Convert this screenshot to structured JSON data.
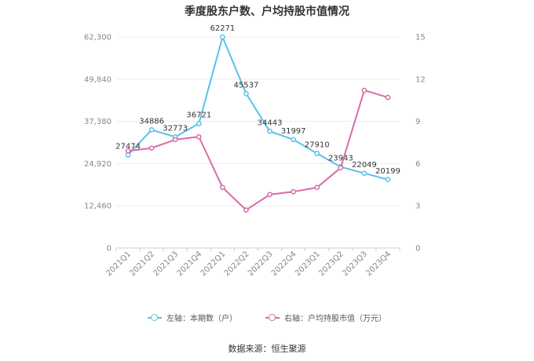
{
  "chart_data": {
    "type": "line",
    "title": "季度股东户数、户均持股市值情况",
    "categories": [
      "2021Q1",
      "2021Q2",
      "2021Q3",
      "2021Q4",
      "2022Q1",
      "2022Q2",
      "2022Q3",
      "2022Q4",
      "2023Q1",
      "2023Q2",
      "2023Q3",
      "2023Q4"
    ],
    "left_axis": {
      "ylim": [
        0,
        62300
      ],
      "ticks": [
        "0",
        "12,460",
        "24,920",
        "37,380",
        "49,840",
        "62,300"
      ]
    },
    "right_axis": {
      "ylim": [
        0,
        15
      ],
      "ticks": [
        "0",
        "3",
        "6",
        "9",
        "12",
        "15"
      ]
    },
    "series": [
      {
        "name": "左轴：本期数（户）",
        "axis": "left",
        "color": "#5bc0eb",
        "values": [
          27474,
          34886,
          32773,
          36721,
          62271,
          45537,
          34443,
          31997,
          27910,
          23943,
          22049,
          20199
        ],
        "labels": [
          "27474",
          "34886",
          "32773",
          "36721",
          "62271",
          "45537",
          "34443",
          "31997",
          "27910",
          "23943",
          "22049",
          "20199"
        ]
      },
      {
        "name": "右轴：户均持股市值（万元）",
        "axis": "right",
        "color": "#d96ba8",
        "values": [
          6.9,
          7.1,
          7.7,
          7.9,
          4.3,
          2.7,
          3.8,
          4.0,
          4.3,
          5.7,
          11.2,
          10.7
        ]
      }
    ],
    "grid": true,
    "legend_position": "bottom"
  },
  "source": "数据来源：恒生聚源"
}
